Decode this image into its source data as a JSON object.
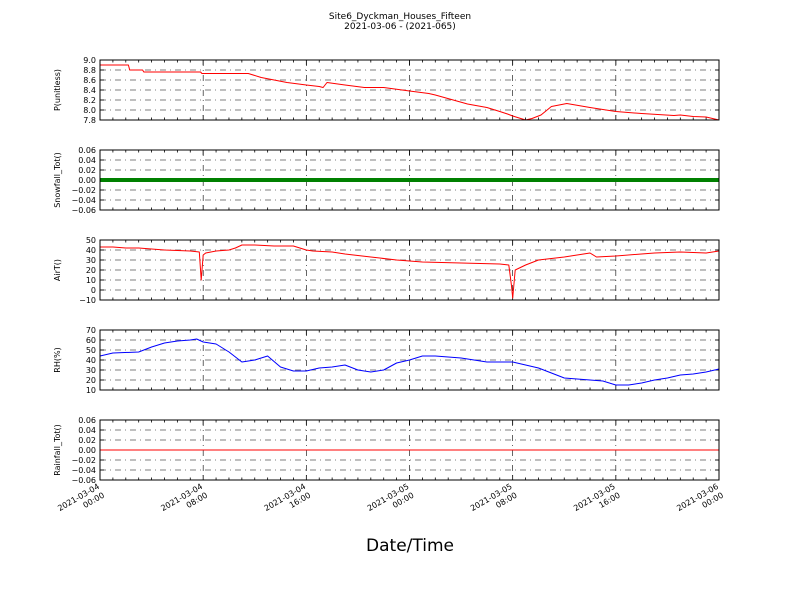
{
  "title_line1": "Site6_Dyckman_Houses_Fifteen",
  "title_line2": "2021-03-06 - (2021-065)",
  "xaxis_label": "Date/Time",
  "x_tick_labels": [
    [
      "2021-03-04",
      "00:00"
    ],
    [
      "2021-03-04",
      "08:00"
    ],
    [
      "2021-03-04",
      "16:00"
    ],
    [
      "2021-03-05",
      "00:00"
    ],
    [
      "2021-03-05",
      "08:00"
    ],
    [
      "2021-03-05",
      "16:00"
    ],
    [
      "2021-03-06",
      "00:00"
    ]
  ],
  "chart_data": [
    {
      "type": "line",
      "ylabel": "P(unitless)",
      "color": "#ff0000",
      "ylim": [
        7.8,
        9.0
      ],
      "yticks": [
        "7.8",
        "8.0",
        "8.2",
        "8.4",
        "8.6",
        "8.8",
        "9.0"
      ],
      "xlim_hours": [
        0,
        48
      ],
      "x_hours": [
        0,
        2.2,
        2.3,
        3.3,
        3.4,
        7.8,
        7.9,
        11.5,
        12.5,
        14.5,
        16.0,
        17.0,
        17.3,
        17.6,
        19.0,
        20.5,
        22.0,
        24.0,
        25.5,
        26.0,
        28.5,
        30.0,
        31.0,
        31.6,
        32.0,
        33.0,
        33.5,
        34.2,
        35.0,
        36.2,
        38.0,
        40.0,
        42.0,
        44.5,
        45.0,
        46.0,
        47.0,
        48.0
      ],
      "y": [
        8.9,
        8.9,
        8.8,
        8.8,
        8.76,
        8.76,
        8.73,
        8.73,
        8.65,
        8.55,
        8.5,
        8.47,
        8.45,
        8.55,
        8.5,
        8.45,
        8.45,
        8.38,
        8.33,
        8.3,
        8.12,
        8.05,
        7.97,
        7.92,
        7.88,
        7.8,
        7.83,
        7.9,
        8.07,
        8.13,
        8.05,
        7.97,
        7.93,
        7.89,
        7.9,
        7.87,
        7.86,
        7.8
      ]
    },
    {
      "type": "line",
      "ylabel": "Snowfall_Tot()",
      "color": "#008000",
      "ylim": [
        -0.06,
        0.06
      ],
      "yticks": [
        "−0.06",
        "−0.04",
        "−0.02",
        "0.00",
        "0.02",
        "0.04",
        "0.06"
      ],
      "xlim_hours": [
        0,
        48
      ],
      "x_hours": [
        0,
        48
      ],
      "y": [
        0,
        0
      ]
    },
    {
      "type": "line",
      "ylabel": "AirT()",
      "color": "#ff0000",
      "ylim": [
        -10,
        50
      ],
      "yticks": [
        "−10",
        "0",
        "10",
        "20",
        "30",
        "40",
        "50"
      ],
      "xlim_hours": [
        0,
        48
      ],
      "x_hours": [
        0,
        1,
        2,
        3,
        5,
        7,
        7.7,
        7.85,
        8.0,
        8.2,
        9,
        10,
        10.5,
        11,
        12,
        13.5,
        15,
        16,
        16.5,
        18,
        19,
        21,
        23,
        25,
        28,
        31,
        31.7,
        31.9,
        32.0,
        32.2,
        33,
        34,
        36,
        38,
        38.5,
        40,
        43,
        45,
        47,
        48
      ],
      "y": [
        43,
        43,
        42,
        42,
        40,
        39,
        38,
        10,
        35,
        37,
        39,
        40,
        42,
        45,
        45,
        44,
        44,
        40,
        39,
        38,
        36,
        33,
        30,
        28,
        27,
        26,
        25,
        5,
        -8,
        20,
        25,
        30,
        33,
        37,
        33,
        34,
        37,
        38,
        37,
        39
      ]
    },
    {
      "type": "line",
      "ylabel": "RH(%)",
      "color": "#0000ff",
      "ylim": [
        10,
        70
      ],
      "yticks": [
        "10",
        "20",
        "30",
        "40",
        "50",
        "60",
        "70"
      ],
      "xlim_hours": [
        0,
        48
      ],
      "x_hours": [
        0,
        1,
        3,
        4,
        5,
        6,
        7,
        7.5,
        8,
        9,
        10,
        11,
        12,
        13,
        14,
        15,
        16,
        17,
        18,
        19,
        20,
        21,
        22,
        23,
        24,
        25,
        26,
        27,
        28,
        29,
        30,
        31,
        32,
        33,
        34,
        35,
        36,
        37,
        38,
        39,
        40,
        41,
        42,
        43,
        44,
        45,
        46,
        47,
        48
      ],
      "y": [
        44,
        47,
        48,
        53,
        57,
        59,
        60,
        61,
        58,
        56,
        48,
        38,
        40,
        44,
        33,
        29,
        29,
        32,
        33,
        35,
        30,
        28,
        30,
        37,
        40,
        44,
        44,
        43,
        42,
        40,
        38,
        38,
        38,
        35,
        32,
        27,
        22,
        21,
        20,
        19,
        15,
        15,
        17,
        20,
        22,
        25,
        26,
        28,
        31
      ]
    },
    {
      "type": "line",
      "ylabel": "Rainfall_Tot()",
      "color": "#ff0000",
      "ylim": [
        -0.06,
        0.06
      ],
      "yticks": [
        "−0.06",
        "−0.04",
        "−0.02",
        "0.00",
        "0.02",
        "0.04",
        "0.06"
      ],
      "xlim_hours": [
        0,
        48
      ],
      "x_hours": [
        0,
        48
      ],
      "y": [
        0,
        0
      ]
    }
  ]
}
